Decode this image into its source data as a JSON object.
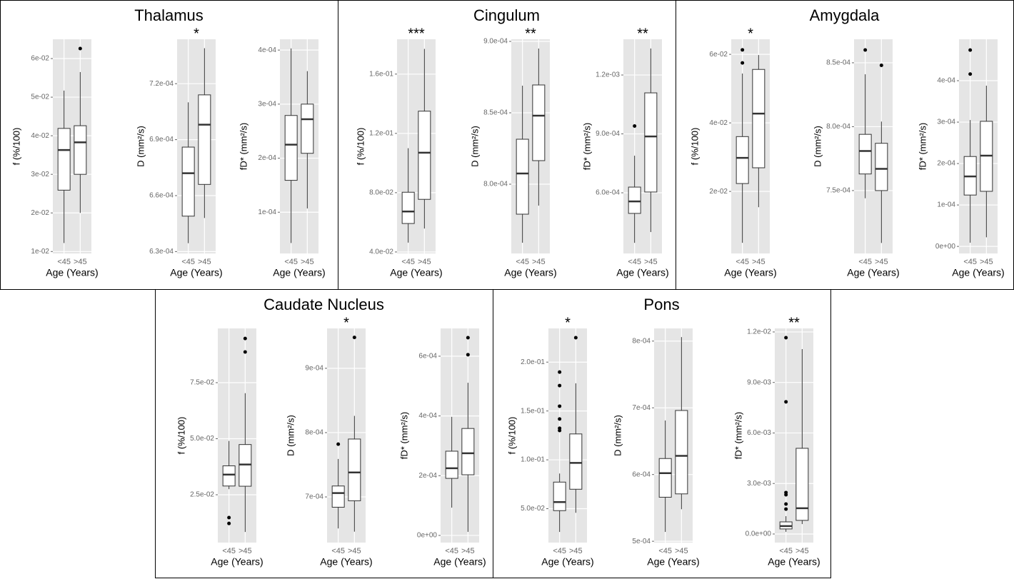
{
  "chart_data": [
    {
      "type": "box",
      "title": "Thalamus",
      "plots": [
        {
          "ylabel": "f (%/100)",
          "ylim": [
            0.0095,
            0.065
          ],
          "yticks": [
            {
              "value": 0.01,
              "label": "1e-02"
            },
            {
              "value": 0.02,
              "label": "2e-02"
            },
            {
              "value": 0.03,
              "label": "3e-02"
            },
            {
              "value": 0.04,
              "label": "4e-02"
            },
            {
              "value": 0.05,
              "label": "5e-02"
            },
            {
              "value": 0.06,
              "label": "6e-02"
            }
          ],
          "categories": [
            "<45",
            ">45"
          ],
          "xlabel": "Age (Years)",
          "boxes": [
            {
              "low": 0.0122,
              "q1": 0.0259,
              "median": 0.0363,
              "q3": 0.0419,
              "high": 0.0517,
              "outliers": []
            },
            {
              "low": 0.02,
              "q1": 0.03,
              "median": 0.0383,
              "q3": 0.0426,
              "high": 0.0565,
              "outliers": [
                0.0626
              ]
            }
          ]
        },
        {
          "ylabel": "D (mm²/s)",
          "annotation": "*",
          "ylim": [
            0.000629,
            0.0007438
          ],
          "yticks": [
            {
              "value": 0.00063,
              "label": "6.3e-04"
            },
            {
              "value": 0.00066,
              "label": "6.6e-04"
            },
            {
              "value": 0.00069,
              "label": "6.9e-04"
            },
            {
              "value": 0.00072,
              "label": "7.2e-04"
            }
          ],
          "categories": [
            "<45",
            ">45"
          ],
          "xlabel": "Age (Years)",
          "boxes": [
            {
              "low": 0.0006345,
              "q1": 0.000649,
              "median": 0.000672,
              "q3": 0.000686,
              "high": 0.00071,
              "outliers": []
            },
            {
              "low": 0.000648,
              "q1": 0.000666,
              "median": 0.000698,
              "q3": 0.000714,
              "high": 0.000739,
              "outliers": []
            }
          ]
        },
        {
          "ylabel": "fD* (mm²/s)",
          "ylim": [
            2.37e-05,
            0.00042
          ],
          "yticks": [
            {
              "value": 0.0001,
              "label": "1e-04"
            },
            {
              "value": 0.0002,
              "label": "2e-04"
            },
            {
              "value": 0.0003,
              "label": "3e-04"
            },
            {
              "value": 0.0004,
              "label": "4e-04"
            }
          ],
          "categories": [
            "<45",
            ">45"
          ],
          "xlabel": "Age (Years)",
          "boxes": [
            {
              "low": 4.3e-05,
              "q1": 0.000159,
              "median": 0.000225,
              "q3": 0.000279,
              "high": 0.000403,
              "outliers": []
            },
            {
              "low": 0.000107,
              "q1": 0.000209,
              "median": 0.000272,
              "q3": 0.0003,
              "high": 0.000361,
              "outliers": []
            }
          ]
        }
      ]
    },
    {
      "type": "box",
      "title": "Cingulum",
      "plots": [
        {
          "ylabel": "f (%/100)",
          "annotation": "***",
          "ylim": [
            0.039,
            0.1835
          ],
          "yticks": [
            {
              "value": 0.04,
              "label": "4.0e-02"
            },
            {
              "value": 0.08,
              "label": "8.0e-02"
            },
            {
              "value": 0.12,
              "label": "1.2e-01"
            },
            {
              "value": 0.16,
              "label": "1.6e-01"
            }
          ],
          "categories": [
            "<45",
            ">45"
          ],
          "xlabel": "Age (Years)",
          "boxes": [
            {
              "low": 0.0463,
              "q1": 0.0592,
              "median": 0.0673,
              "q3": 0.0803,
              "high": 0.11,
              "outliers": []
            },
            {
              "low": 0.0558,
              "q1": 0.0755,
              "median": 0.107,
              "q3": 0.135,
              "high": 0.177,
              "outliers": []
            }
          ]
        },
        {
          "ylabel": "D (mm²/s)",
          "annotation": "**",
          "ylim": [
            0.0007515,
            0.0009015
          ],
          "yticks": [
            {
              "value": 0.0008,
              "label": "8.0e-04"
            },
            {
              "value": 0.00085,
              "label": "8.5e-04"
            },
            {
              "value": 0.0009,
              "label": "9.0e-04"
            }
          ],
          "categories": [
            "<45",
            ">45"
          ],
          "xlabel": "Age (Years)",
          "boxes": [
            {
              "low": 0.000759,
              "q1": 0.000779,
              "median": 0.0008075,
              "q3": 0.0008315,
              "high": 0.000869,
              "outliers": []
            },
            {
              "low": 0.000785,
              "q1": 0.0008165,
              "median": 0.000848,
              "q3": 0.0008695,
              "high": 0.000895,
              "outliers": []
            }
          ]
        },
        {
          "ylabel": "fD* (mm²/s)",
          "annotation": "**",
          "ylim": [
            0.000291,
            0.001382
          ],
          "yticks": [
            {
              "value": 0.0006,
              "label": "6.0e-04"
            },
            {
              "value": 0.0009,
              "label": "9.0e-04"
            },
            {
              "value": 0.0012,
              "label": "1.2e-03"
            }
          ],
          "categories": [
            "<45",
            ">45"
          ],
          "xlabel": "Age (Years)",
          "boxes": [
            {
              "low": 0.000345,
              "q1": 0.000495,
              "median": 0.000556,
              "q3": 0.000629,
              "high": 0.000789,
              "outliers": [
                0.00094
              ]
            },
            {
              "low": 0.0004,
              "q1": 0.000604,
              "median": 0.000887,
              "q3": 0.001109,
              "high": 0.001335,
              "outliers": []
            }
          ]
        }
      ]
    },
    {
      "type": "box",
      "title": "Amygdala",
      "plots": [
        {
          "ylabel": "f (%/100)",
          "annotation": "*",
          "ylim": [
            0.0019,
            0.0644
          ],
          "yticks": [
            {
              "value": 0.02,
              "label": "2e-02"
            },
            {
              "value": 0.04,
              "label": "4e-02"
            },
            {
              "value": 0.06,
              "label": "6e-02"
            }
          ],
          "categories": [
            "<45",
            ">45"
          ],
          "xlabel": "Age (Years)",
          "boxes": [
            {
              "low": 0.005,
              "q1": 0.0223,
              "median": 0.0298,
              "q3": 0.036,
              "high": 0.0544,
              "outliers": [
                0.0613,
                0.0575
              ]
            },
            {
              "low": 0.0154,
              "q1": 0.0269,
              "median": 0.0427,
              "q3": 0.0556,
              "high": 0.0598,
              "outliers": []
            }
          ]
        },
        {
          "ylabel": "D (mm²/s)",
          "ylim": [
            0.0007008,
            0.0008684
          ],
          "yticks": [
            {
              "value": 0.00075,
              "label": "7.5e-04"
            },
            {
              "value": 0.0008,
              "label": "8.0e-04"
            },
            {
              "value": 0.00085,
              "label": "8.5e-04"
            }
          ],
          "categories": [
            "<45",
            ">45"
          ],
          "xlabel": "Age (Years)",
          "boxes": [
            {
              "low": 0.000744,
              "q1": 0.000763,
              "median": 0.000781,
              "q3": 0.000794,
              "high": 0.000841,
              "outliers": [
                0.00086
              ]
            },
            {
              "low": 0.000709,
              "q1": 0.00075,
              "median": 0.000767,
              "q3": 0.000787,
              "high": 0.000804,
              "outliers": [
                0.000848
              ]
            }
          ]
        },
        {
          "ylabel": "fD* (mm²/s)",
          "ylim": [
            -1.7e-05,
            0.0005
          ],
          "yticks": [
            {
              "value": 0,
              "label": "0e+00"
            },
            {
              "value": 0.0001,
              "label": "1e-04"
            },
            {
              "value": 0.0002,
              "label": "2e-04"
            },
            {
              "value": 0.0003,
              "label": "3e-04"
            },
            {
              "value": 0.0004,
              "label": "4e-04"
            }
          ],
          "categories": [
            "<45",
            ">45"
          ],
          "xlabel": "Age (Years)",
          "boxes": [
            {
              "low": 9e-06,
              "q1": 0.000124,
              "median": 0.000169,
              "q3": 0.000217,
              "high": 0.000305,
              "outliers": [
                0.000474,
                0.000416
              ]
            },
            {
              "low": 2.2e-05,
              "q1": 0.000133,
              "median": 0.000219,
              "q3": 0.000302,
              "high": 0.000388,
              "outliers": []
            }
          ]
        }
      ]
    },
    {
      "type": "box",
      "title": "Caudate Nucleus",
      "plots": [
        {
          "ylabel": "f (%/100)",
          "ylim": [
            0.00366,
            0.0992
          ],
          "yticks": [
            {
              "value": 0.025,
              "label": "2.5e-02"
            },
            {
              "value": 0.05,
              "label": "5.0e-02"
            },
            {
              "value": 0.075,
              "label": "7.5e-02"
            }
          ],
          "categories": [
            "<45",
            ">45"
          ],
          "xlabel": "Age (Years)",
          "boxes": [
            {
              "low": 0.0275,
              "q1": 0.0289,
              "median": 0.034,
              "q3": 0.0379,
              "high": 0.049,
              "outliers": [
                0.0148,
                0.0122
              ]
            },
            {
              "low": 0.0084,
              "q1": 0.0288,
              "median": 0.0385,
              "q3": 0.0474,
              "high": 0.0703,
              "outliers": [
                0.0947,
                0.0887
              ]
            }
          ]
        },
        {
          "ylabel": "D (mm²/s)",
          "annotation": "*",
          "ylim": [
            0.000629,
            0.000962
          ],
          "yticks": [
            {
              "value": 0.0007,
              "label": "7e-04"
            },
            {
              "value": 0.0008,
              "label": "8e-04"
            },
            {
              "value": 0.0009,
              "label": "9e-04"
            }
          ],
          "categories": [
            "<45",
            ">45"
          ],
          "xlabel": "Age (Years)",
          "boxes": [
            {
              "low": 0.000651,
              "q1": 0.000684,
              "median": 0.000706,
              "q3": 0.000717,
              "high": 0.000759,
              "outliers": [
                0.000782
              ]
            },
            {
              "low": 0.000646,
              "q1": 0.000694,
              "median": 0.000738,
              "q3": 0.00079,
              "high": 0.000826,
              "outliers": [
                0.000948
              ]
            }
          ]
        },
        {
          "ylabel": "fD* (mm²/s)",
          "ylim": [
            -2.4e-05,
            0.000693
          ],
          "yticks": [
            {
              "value": 0,
              "label": "0e+00"
            },
            {
              "value": 0.0002,
              "label": "2e-04"
            },
            {
              "value": 0.0004,
              "label": "4e-04"
            },
            {
              "value": 0.0006,
              "label": "6e-04"
            }
          ],
          "categories": [
            "<45",
            ">45"
          ],
          "xlabel": "Age (Years)",
          "boxes": [
            {
              "low": 9.3e-05,
              "q1": 0.000191,
              "median": 0.000225,
              "q3": 0.000282,
              "high": 0.000397,
              "outliers": []
            },
            {
              "low": 1.2e-05,
              "q1": 0.000203,
              "median": 0.000275,
              "q3": 0.000358,
              "high": 0.000511,
              "outliers": [
                0.000662,
                0.000605
              ]
            }
          ]
        }
      ]
    },
    {
      "type": "box",
      "title": "Pons",
      "plots": [
        {
          "ylabel": "f (%/100)",
          "annotation": "*",
          "ylim": [
            0.0153,
            0.2345
          ],
          "yticks": [
            {
              "value": 0.05,
              "label": "5.0e-02"
            },
            {
              "value": 0.1,
              "label": "1.0e-01"
            },
            {
              "value": 0.15,
              "label": "1.5e-01"
            },
            {
              "value": 0.2,
              "label": "2.0e-01"
            }
          ],
          "categories": [
            "<45",
            ">45"
          ],
          "xlabel": "Age (Years)",
          "boxes": [
            {
              "low": 0.0262,
              "q1": 0.048,
              "median": 0.0568,
              "q3": 0.0772,
              "high": 0.086,
              "outliers": [
                0.1898,
                0.176,
                0.1549,
                0.1418,
                0.1323,
                0.13
              ]
            },
            {
              "low": 0.0458,
              "q1": 0.0699,
              "median": 0.0969,
              "q3": 0.1265,
              "high": 0.1783,
              "outliers": [
                0.225
              ]
            }
          ]
        },
        {
          "ylabel": "D (mm²/s)",
          "ylim": [
            0.000498,
            0.000819
          ],
          "yticks": [
            {
              "value": 0.0005,
              "label": "5e-04"
            },
            {
              "value": 0.0006,
              "label": "6e-04"
            },
            {
              "value": 0.0007,
              "label": "7e-04"
            },
            {
              "value": 0.0008,
              "label": "8e-04"
            }
          ],
          "categories": [
            "<45",
            ">45"
          ],
          "xlabel": "Age (Years)",
          "boxes": [
            {
              "low": 0.000514,
              "q1": 0.000566,
              "median": 0.000602,
              "q3": 0.000624,
              "high": 0.000681,
              "outliers": []
            },
            {
              "low": 0.000548,
              "q1": 0.000571,
              "median": 0.000628,
              "q3": 0.000696,
              "high": 0.000806,
              "outliers": []
            }
          ]
        },
        {
          "ylabel": "fD* (mm²/s)",
          "annotation": "**",
          "ylim": [
            -0.00051,
            0.01221
          ],
          "yticks": [
            {
              "value": 0,
              "label": "0.0e+00"
            },
            {
              "value": 0.003,
              "label": "3.0e-03"
            },
            {
              "value": 0.006,
              "label": "6.0e-03"
            },
            {
              "value": 0.009,
              "label": "9.0e-03"
            },
            {
              "value": 0.012,
              "label": "1.2e-02"
            }
          ],
          "categories": [
            "<45",
            ">45"
          ],
          "xlabel": "Age (Years)",
          "boxes": [
            {
              "low": 0.00013,
              "q1": 0.0003,
              "median": 0.00047,
              "q3": 0.00072,
              "high": 0.00106,
              "outliers": [
                0.01166,
                0.00785,
                0.00246,
                0.00233,
                0.00178,
                0.00148
              ]
            },
            {
              "low": 0.00059,
              "q1": 0.00081,
              "median": 0.00153,
              "q3": 0.00509,
              "high": 0.01098,
              "outliers": []
            }
          ]
        }
      ]
    }
  ]
}
